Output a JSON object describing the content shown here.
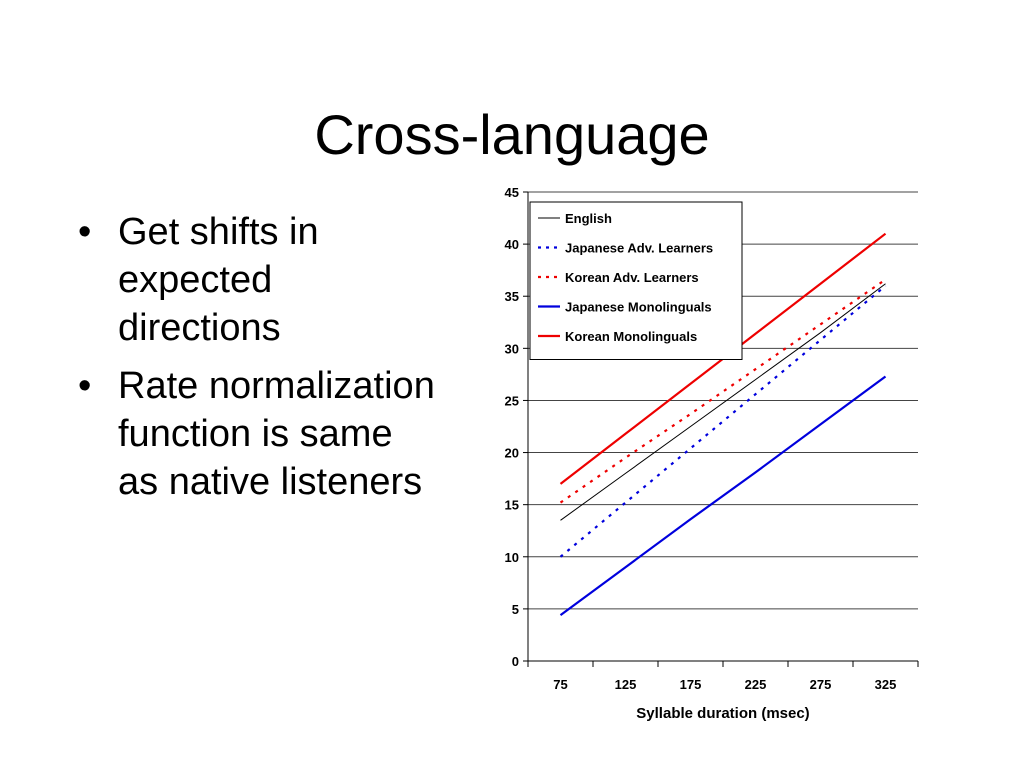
{
  "slide": {
    "title": "Cross-language",
    "bullet_glyph": "•",
    "bullets": [
      "Get shifts in expected directions",
      "Rate normalization function is same as native listeners"
    ]
  },
  "chart_data": {
    "type": "line",
    "title": "",
    "xlabel": "Syllable duration (msec)",
    "ylabel": "",
    "x": [
      75,
      125,
      175,
      225,
      275,
      325
    ],
    "xlim": [
      50,
      350
    ],
    "ylim": [
      0,
      45
    ],
    "yticks": [
      0,
      5,
      10,
      15,
      20,
      25,
      30,
      35,
      40,
      45
    ],
    "grid": "horizontal",
    "legend_position": "top-left",
    "series": [
      {
        "name": "English",
        "color": "#000000",
        "style": "thin-solid",
        "values": [
          13.5,
          18.0,
          22.5,
          27.0,
          31.5,
          36.2
        ]
      },
      {
        "name": "Japanese Adv. Learners",
        "color": "#0000dd",
        "style": "dotted",
        "values": [
          10.0,
          15.2,
          20.4,
          25.6,
          30.8,
          36.0
        ]
      },
      {
        "name": "Korean Adv. Learners",
        "color": "#ee0000",
        "style": "dotted",
        "values": [
          15.2,
          19.5,
          23.7,
          28.0,
          32.3,
          36.6
        ]
      },
      {
        "name": "Japanese Monolinguals",
        "color": "#0000dd",
        "style": "solid",
        "values": [
          4.4,
          9.0,
          13.6,
          18.1,
          22.7,
          27.3
        ]
      },
      {
        "name": "Korean Monolinguals",
        "color": "#ee0000",
        "style": "solid",
        "values": [
          17.0,
          21.8,
          26.6,
          31.4,
          36.2,
          41.0
        ]
      }
    ]
  }
}
